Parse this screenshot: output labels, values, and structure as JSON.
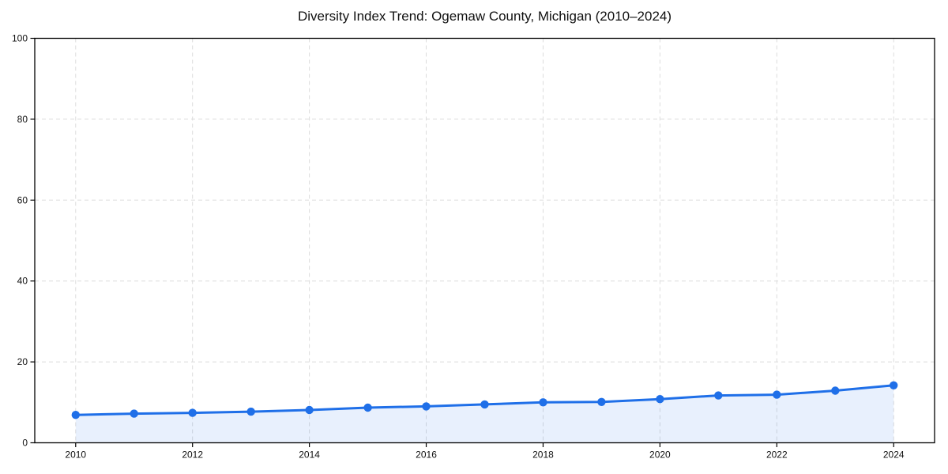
{
  "page": {
    "background_color": "#ffffff"
  },
  "chart_data": {
    "type": "line",
    "title": "Diversity Index Trend: Ogemaw County, Michigan (2010–2024)",
    "x": [
      2010,
      2011,
      2012,
      2013,
      2014,
      2015,
      2016,
      2017,
      2018,
      2019,
      2020,
      2021,
      2022,
      2023,
      2024
    ],
    "series": [
      {
        "name": "Diversity Index",
        "values": [
          6.9,
          7.2,
          7.4,
          7.7,
          8.1,
          8.7,
          9.0,
          9.5,
          10.0,
          10.1,
          10.8,
          11.7,
          11.9,
          12.9,
          14.2
        ]
      }
    ],
    "xlabel": "",
    "ylabel": "",
    "xlim": [
      2009.3,
      2024.7
    ],
    "ylim": [
      0,
      100
    ],
    "xticks": [
      2010,
      2012,
      2014,
      2016,
      2018,
      2020,
      2022,
      2024
    ],
    "yticks": [
      0,
      20,
      40,
      60,
      80,
      100
    ],
    "grid": true,
    "grid_style": "dashed",
    "legend_position": "none",
    "markers": "circle",
    "area_fill": true,
    "style": {
      "line_color": "#1f6fe8",
      "marker_color": "#1f6fe8",
      "area_fill_color": "#1f6fe8",
      "area_fill_opacity": 0.1,
      "grid_color": "#dcdcdc",
      "axis_color": "#000000",
      "text_color": "#111111"
    }
  }
}
